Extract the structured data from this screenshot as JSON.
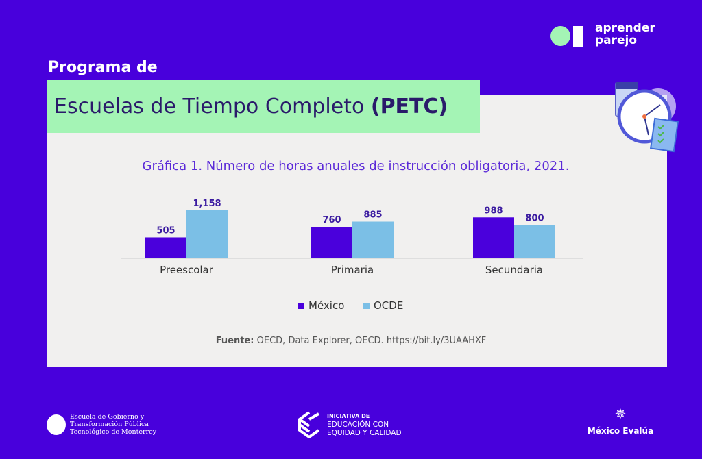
{
  "brand": {
    "name_line1": "aprender",
    "name_line2": "parejo"
  },
  "header": {
    "subtitle": "Programa de",
    "title": "Escuelas de Tiempo Completo",
    "title_bold": "(PETC)"
  },
  "chart_data": {
    "type": "bar",
    "title": "Gráfica 1. Número de horas anuales de instrucción obligatoria, 2021.",
    "categories": [
      "Preescolar",
      "Primaria",
      "Secundaria"
    ],
    "series": [
      {
        "name": "México",
        "color": "#4a00dc",
        "values": [
          505,
          760,
          988
        ],
        "labels": [
          "505",
          "760",
          "988"
        ]
      },
      {
        "name": "OCDE",
        "color": "#7bbfe6",
        "values": [
          1158,
          885,
          800
        ],
        "labels": [
          "1,158",
          "885",
          "800"
        ]
      }
    ],
    "ylim": [
      0,
      1200
    ],
    "grid": false,
    "legend": "bottom"
  },
  "source": {
    "label": "Fuente:",
    "text": "OECD, Data Explorer, OECD.",
    "link": "https://bit.ly/3UAAHXF"
  },
  "footer": {
    "tec": [
      "Escuela de Gobierno y",
      "Transformación Pública",
      "Tecnológico de Monterrey"
    ],
    "iniciativa": [
      "INICIATIVA DE",
      "EDUCACIÓN CON",
      "EQUIDAD Y CALIDAD"
    ],
    "mexico_evalua": "México Evalúa"
  }
}
